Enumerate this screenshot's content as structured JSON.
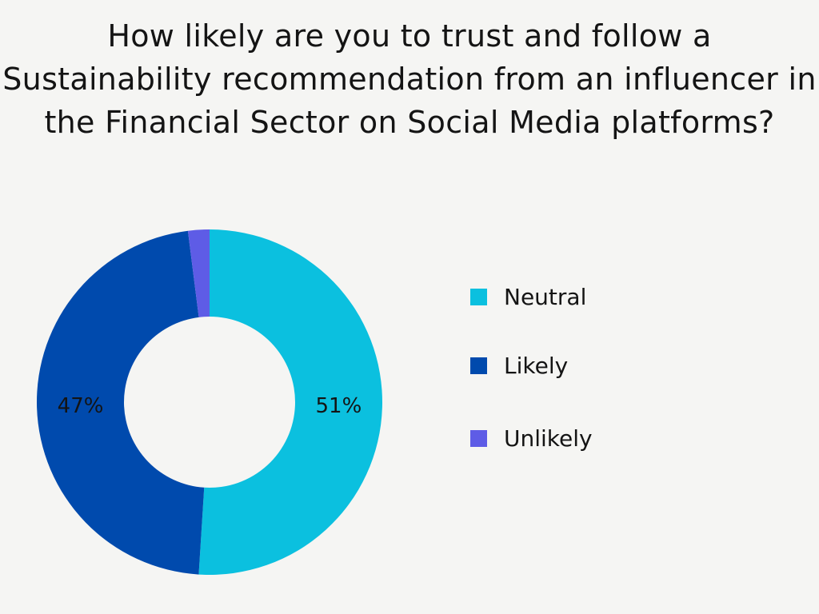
{
  "chart_data": {
    "type": "pie",
    "title": "How likely are you to trust and follow a Sustainability recommendation from an influencer in the Financial Sector on Social Media platforms?",
    "slices": [
      {
        "name": "Neutral",
        "value": 51,
        "label": "51%",
        "color": "#0bc0df"
      },
      {
        "name": "Likely",
        "value": 47,
        "label": "47%",
        "color": "#004aad"
      },
      {
        "name": "Unlikely",
        "value": 2,
        "label": "",
        "color": "#5e5ce6"
      }
    ],
    "donut": true,
    "legend_position": "right"
  }
}
